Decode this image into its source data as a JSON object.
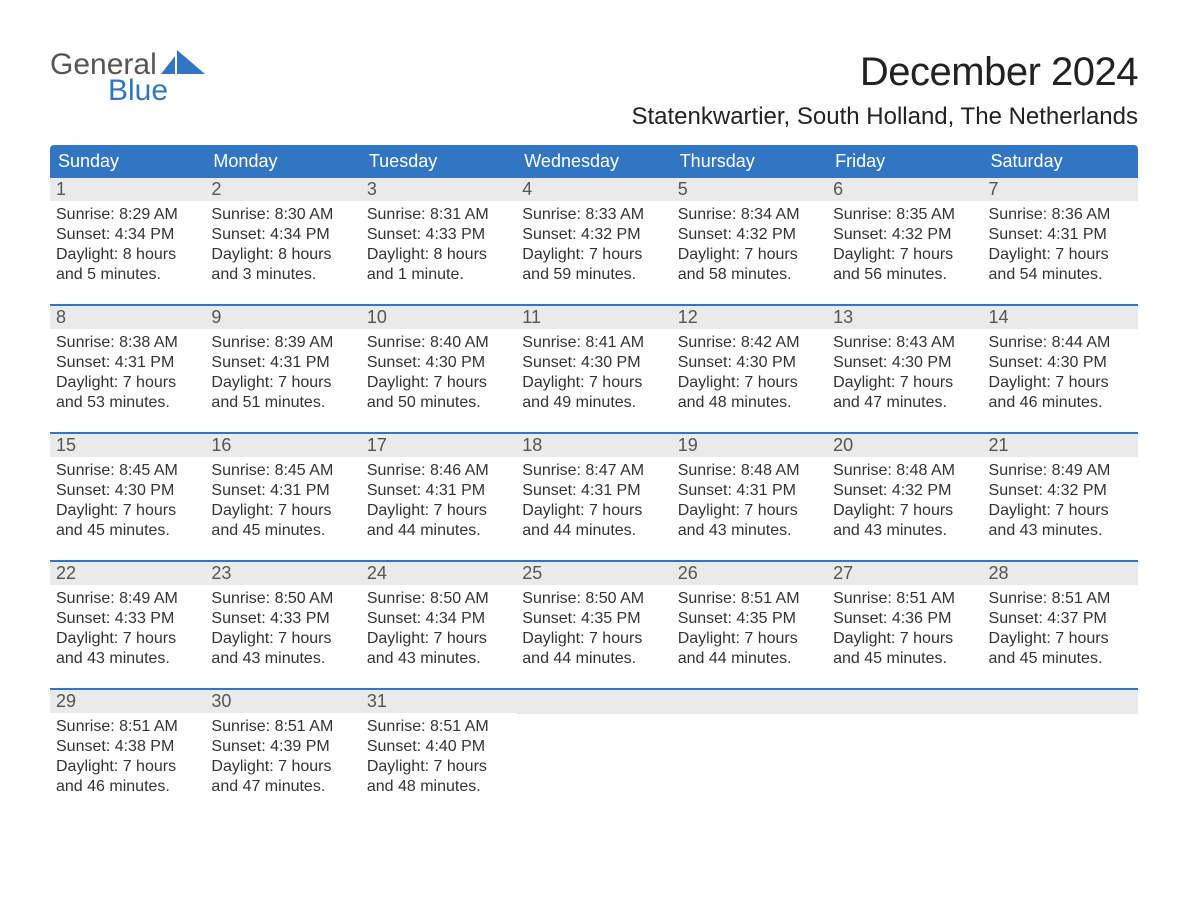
{
  "brand": {
    "line1": "General",
    "line2": "Blue",
    "accent_color": "#3276c3"
  },
  "title": "December 2024",
  "subtitle": "Statenkwartier, South Holland, The Netherlands",
  "colors": {
    "header_bg": "#3276c3",
    "header_text": "#ffffff",
    "daynum_bg": "#eaeaea",
    "week_divider": "#3276c3",
    "page_bg": "#ffffff",
    "text": "#333333"
  },
  "typography": {
    "title_fontsize": 40,
    "subtitle_fontsize": 24,
    "dow_fontsize": 18,
    "body_fontsize": 16
  },
  "day_names": [
    "Sunday",
    "Monday",
    "Tuesday",
    "Wednesday",
    "Thursday",
    "Friday",
    "Saturday"
  ],
  "weeks": [
    [
      {
        "n": "1",
        "sunrise": "Sunrise: 8:29 AM",
        "sunset": "Sunset: 4:34 PM",
        "daylight1": "Daylight: 8 hours",
        "daylight2": "and 5 minutes."
      },
      {
        "n": "2",
        "sunrise": "Sunrise: 8:30 AM",
        "sunset": "Sunset: 4:34 PM",
        "daylight1": "Daylight: 8 hours",
        "daylight2": "and 3 minutes."
      },
      {
        "n": "3",
        "sunrise": "Sunrise: 8:31 AM",
        "sunset": "Sunset: 4:33 PM",
        "daylight1": "Daylight: 8 hours",
        "daylight2": "and 1 minute."
      },
      {
        "n": "4",
        "sunrise": "Sunrise: 8:33 AM",
        "sunset": "Sunset: 4:32 PM",
        "daylight1": "Daylight: 7 hours",
        "daylight2": "and 59 minutes."
      },
      {
        "n": "5",
        "sunrise": "Sunrise: 8:34 AM",
        "sunset": "Sunset: 4:32 PM",
        "daylight1": "Daylight: 7 hours",
        "daylight2": "and 58 minutes."
      },
      {
        "n": "6",
        "sunrise": "Sunrise: 8:35 AM",
        "sunset": "Sunset: 4:32 PM",
        "daylight1": "Daylight: 7 hours",
        "daylight2": "and 56 minutes."
      },
      {
        "n": "7",
        "sunrise": "Sunrise: 8:36 AM",
        "sunset": "Sunset: 4:31 PM",
        "daylight1": "Daylight: 7 hours",
        "daylight2": "and 54 minutes."
      }
    ],
    [
      {
        "n": "8",
        "sunrise": "Sunrise: 8:38 AM",
        "sunset": "Sunset: 4:31 PM",
        "daylight1": "Daylight: 7 hours",
        "daylight2": "and 53 minutes."
      },
      {
        "n": "9",
        "sunrise": "Sunrise: 8:39 AM",
        "sunset": "Sunset: 4:31 PM",
        "daylight1": "Daylight: 7 hours",
        "daylight2": "and 51 minutes."
      },
      {
        "n": "10",
        "sunrise": "Sunrise: 8:40 AM",
        "sunset": "Sunset: 4:30 PM",
        "daylight1": "Daylight: 7 hours",
        "daylight2": "and 50 minutes."
      },
      {
        "n": "11",
        "sunrise": "Sunrise: 8:41 AM",
        "sunset": "Sunset: 4:30 PM",
        "daylight1": "Daylight: 7 hours",
        "daylight2": "and 49 minutes."
      },
      {
        "n": "12",
        "sunrise": "Sunrise: 8:42 AM",
        "sunset": "Sunset: 4:30 PM",
        "daylight1": "Daylight: 7 hours",
        "daylight2": "and 48 minutes."
      },
      {
        "n": "13",
        "sunrise": "Sunrise: 8:43 AM",
        "sunset": "Sunset: 4:30 PM",
        "daylight1": "Daylight: 7 hours",
        "daylight2": "and 47 minutes."
      },
      {
        "n": "14",
        "sunrise": "Sunrise: 8:44 AM",
        "sunset": "Sunset: 4:30 PM",
        "daylight1": "Daylight: 7 hours",
        "daylight2": "and 46 minutes."
      }
    ],
    [
      {
        "n": "15",
        "sunrise": "Sunrise: 8:45 AM",
        "sunset": "Sunset: 4:30 PM",
        "daylight1": "Daylight: 7 hours",
        "daylight2": "and 45 minutes."
      },
      {
        "n": "16",
        "sunrise": "Sunrise: 8:45 AM",
        "sunset": "Sunset: 4:31 PM",
        "daylight1": "Daylight: 7 hours",
        "daylight2": "and 45 minutes."
      },
      {
        "n": "17",
        "sunrise": "Sunrise: 8:46 AM",
        "sunset": "Sunset: 4:31 PM",
        "daylight1": "Daylight: 7 hours",
        "daylight2": "and 44 minutes."
      },
      {
        "n": "18",
        "sunrise": "Sunrise: 8:47 AM",
        "sunset": "Sunset: 4:31 PM",
        "daylight1": "Daylight: 7 hours",
        "daylight2": "and 44 minutes."
      },
      {
        "n": "19",
        "sunrise": "Sunrise: 8:48 AM",
        "sunset": "Sunset: 4:31 PM",
        "daylight1": "Daylight: 7 hours",
        "daylight2": "and 43 minutes."
      },
      {
        "n": "20",
        "sunrise": "Sunrise: 8:48 AM",
        "sunset": "Sunset: 4:32 PM",
        "daylight1": "Daylight: 7 hours",
        "daylight2": "and 43 minutes."
      },
      {
        "n": "21",
        "sunrise": "Sunrise: 8:49 AM",
        "sunset": "Sunset: 4:32 PM",
        "daylight1": "Daylight: 7 hours",
        "daylight2": "and 43 minutes."
      }
    ],
    [
      {
        "n": "22",
        "sunrise": "Sunrise: 8:49 AM",
        "sunset": "Sunset: 4:33 PM",
        "daylight1": "Daylight: 7 hours",
        "daylight2": "and 43 minutes."
      },
      {
        "n": "23",
        "sunrise": "Sunrise: 8:50 AM",
        "sunset": "Sunset: 4:33 PM",
        "daylight1": "Daylight: 7 hours",
        "daylight2": "and 43 minutes."
      },
      {
        "n": "24",
        "sunrise": "Sunrise: 8:50 AM",
        "sunset": "Sunset: 4:34 PM",
        "daylight1": "Daylight: 7 hours",
        "daylight2": "and 43 minutes."
      },
      {
        "n": "25",
        "sunrise": "Sunrise: 8:50 AM",
        "sunset": "Sunset: 4:35 PM",
        "daylight1": "Daylight: 7 hours",
        "daylight2": "and 44 minutes."
      },
      {
        "n": "26",
        "sunrise": "Sunrise: 8:51 AM",
        "sunset": "Sunset: 4:35 PM",
        "daylight1": "Daylight: 7 hours",
        "daylight2": "and 44 minutes."
      },
      {
        "n": "27",
        "sunrise": "Sunrise: 8:51 AM",
        "sunset": "Sunset: 4:36 PM",
        "daylight1": "Daylight: 7 hours",
        "daylight2": "and 45 minutes."
      },
      {
        "n": "28",
        "sunrise": "Sunrise: 8:51 AM",
        "sunset": "Sunset: 4:37 PM",
        "daylight1": "Daylight: 7 hours",
        "daylight2": "and 45 minutes."
      }
    ],
    [
      {
        "n": "29",
        "sunrise": "Sunrise: 8:51 AM",
        "sunset": "Sunset: 4:38 PM",
        "daylight1": "Daylight: 7 hours",
        "daylight2": "and 46 minutes."
      },
      {
        "n": "30",
        "sunrise": "Sunrise: 8:51 AM",
        "sunset": "Sunset: 4:39 PM",
        "daylight1": "Daylight: 7 hours",
        "daylight2": "and 47 minutes."
      },
      {
        "n": "31",
        "sunrise": "Sunrise: 8:51 AM",
        "sunset": "Sunset: 4:40 PM",
        "daylight1": "Daylight: 7 hours",
        "daylight2": "and 48 minutes."
      },
      null,
      null,
      null,
      null
    ]
  ]
}
